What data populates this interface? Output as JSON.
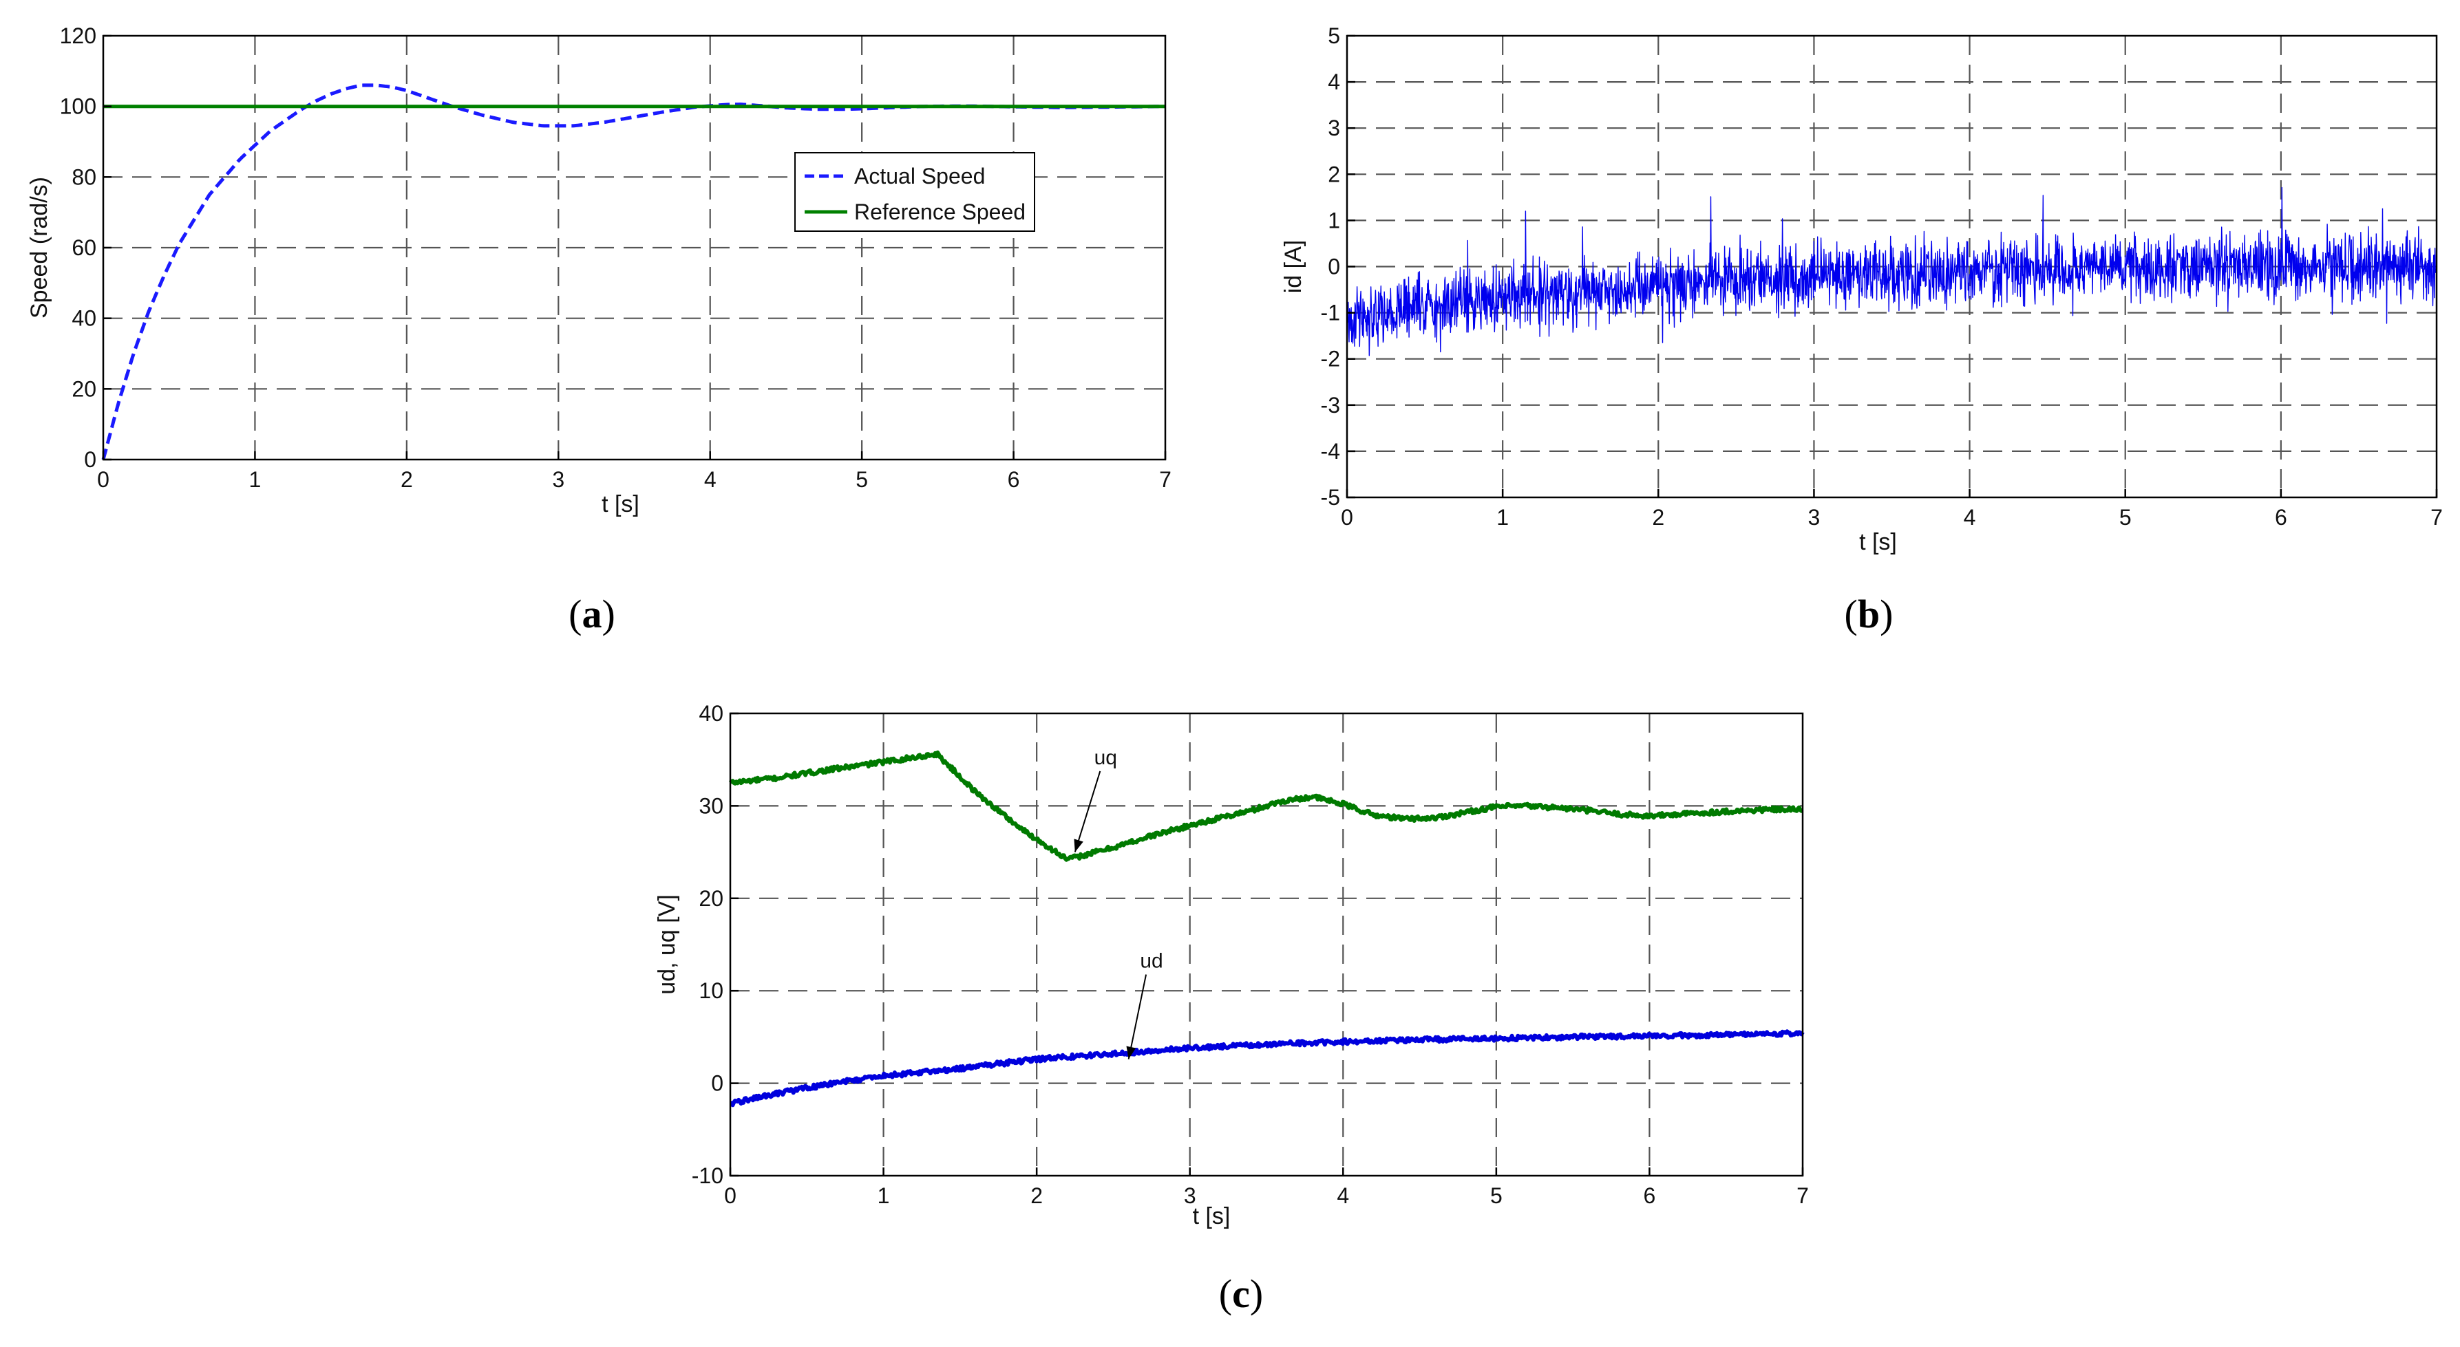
{
  "chart_data": [
    {
      "type": "line",
      "panel_label": "a",
      "caption_open": "(",
      "caption_close": ")",
      "title": "",
      "xlabel": "t [s]",
      "ylabel": "Speed (rad/s)",
      "xlim": [
        0,
        7
      ],
      "ylim": [
        0,
        120
      ],
      "xticks": [
        0,
        1,
        2,
        3,
        4,
        5,
        6,
        7
      ],
      "yticks": [
        0,
        20,
        40,
        60,
        80,
        100,
        120
      ],
      "grid": true,
      "legend_position": "center-right",
      "colors": {
        "actual": "#1a1aff",
        "reference": "#008000"
      },
      "series": [
        {
          "name": "Actual Speed",
          "style": "dashed",
          "x": [
            0,
            0.1,
            0.2,
            0.3,
            0.4,
            0.5,
            0.6,
            0.7,
            0.8,
            0.9,
            1.0,
            1.1,
            1.2,
            1.3,
            1.4,
            1.5,
            1.6,
            1.7,
            1.8,
            1.9,
            2.0,
            2.1,
            2.2,
            2.3,
            2.5,
            2.7,
            2.9,
            3.1,
            3.3,
            3.5,
            3.7,
            3.9,
            4.1,
            4.2,
            4.3,
            4.5,
            4.7,
            4.9,
            5.1,
            5.4,
            5.7,
            6.0,
            6.3,
            6.6,
            7.0
          ],
          "y": [
            0,
            16,
            30,
            42,
            52,
            61,
            68,
            75,
            80,
            85,
            89,
            93,
            96,
            99,
            101.5,
            103.5,
            105,
            106,
            106,
            105.5,
            104.5,
            103,
            101.5,
            100,
            97.5,
            95.5,
            94.5,
            94.5,
            95.5,
            97,
            98.5,
            99.8,
            100.5,
            100.6,
            100.3,
            99.6,
            99.2,
            99.2,
            99.5,
            100,
            100.1,
            99.9,
            99.7,
            99.8,
            100
          ]
        },
        {
          "name": "Reference Speed",
          "style": "solid",
          "x": [
            0,
            7
          ],
          "y": [
            100,
            100
          ]
        }
      ]
    },
    {
      "type": "line",
      "panel_label": "b",
      "caption_open": "(",
      "caption_close": ")",
      "title": "",
      "xlabel": "t [s]",
      "ylabel": "id [A]",
      "xlim": [
        0,
        7
      ],
      "ylim": [
        -5,
        5
      ],
      "xticks": [
        0,
        1,
        2,
        3,
        4,
        5,
        6,
        7
      ],
      "yticks": [
        -5,
        -4,
        -3,
        -2,
        -1,
        0,
        1,
        2,
        3,
        4,
        5
      ],
      "grid": true,
      "colors": {
        "id": "#0000ee"
      },
      "series": [
        {
          "name": "id",
          "style": "solid",
          "noise_amplitude": 0.6,
          "x": [
            0,
            0.5,
            1,
            2,
            3,
            4,
            5,
            6,
            7
          ],
          "y": [
            -1.1,
            -0.9,
            -0.7,
            -0.4,
            -0.2,
            -0.1,
            0,
            0,
            0
          ]
        }
      ]
    },
    {
      "type": "line",
      "panel_label": "c",
      "caption_open": "(",
      "caption_close": ")",
      "title": "",
      "xlabel": "t [s]",
      "ylabel": "ud, uq [V]",
      "xlim": [
        0,
        7
      ],
      "ylim": [
        -10,
        40
      ],
      "xticks": [
        0,
        1,
        2,
        3,
        4,
        5,
        6,
        7
      ],
      "yticks": [
        -10,
        0,
        10,
        20,
        30,
        40
      ],
      "grid": true,
      "colors": {
        "uq": "#007a00",
        "ud": "#0000dd"
      },
      "annotations": [
        {
          "text": "uq",
          "x": 2.45,
          "y": 34.5,
          "arrow_to": [
            2.25,
            25
          ]
        },
        {
          "text": "ud",
          "x": 2.75,
          "y": 12.5,
          "arrow_to": [
            2.6,
            2.6
          ]
        }
      ],
      "series": [
        {
          "name": "uq",
          "style": "solid",
          "x": [
            0,
            0.3,
            0.6,
            0.9,
            1.1,
            1.35,
            1.6,
            1.9,
            2.2,
            2.5,
            2.8,
            3.1,
            3.4,
            3.6,
            3.8,
            4.0,
            4.2,
            4.4,
            4.6,
            4.8,
            5.0,
            5.2,
            5.4,
            5.6,
            5.8,
            6.0,
            6.2,
            6.5,
            6.8,
            7.0
          ],
          "y": [
            32.5,
            33.0,
            33.8,
            34.5,
            35.0,
            35.6,
            31.5,
            27.5,
            24.2,
            25.5,
            27.0,
            28.3,
            29.5,
            30.5,
            31.0,
            30.2,
            29.0,
            28.6,
            28.7,
            29.3,
            29.9,
            30.0,
            29.8,
            29.5,
            29.1,
            28.9,
            29.1,
            29.4,
            29.6,
            29.6
          ]
        },
        {
          "name": "ud",
          "style": "solid",
          "x": [
            0,
            0.25,
            0.5,
            0.75,
            1.0,
            1.25,
            1.5,
            2.0,
            2.5,
            3.0,
            3.5,
            4.0,
            4.5,
            5.0,
            5.5,
            6.0,
            6.5,
            7.0
          ],
          "y": [
            -2.2,
            -1.3,
            -0.5,
            0.2,
            0.8,
            1.2,
            1.6,
            2.6,
            3.2,
            3.8,
            4.2,
            4.5,
            4.7,
            4.85,
            5.0,
            5.1,
            5.25,
            5.4
          ]
        }
      ]
    }
  ]
}
